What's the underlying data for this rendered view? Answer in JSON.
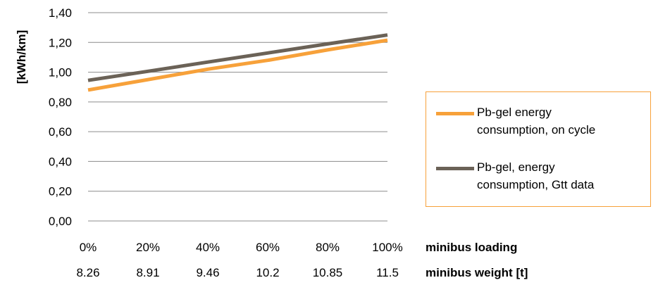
{
  "chart_data": {
    "type": "line",
    "x": [
      0,
      20,
      40,
      60,
      80,
      100
    ],
    "x_tick_labels": [
      "0%",
      "20%",
      "40%",
      "60%",
      "80%",
      "100%"
    ],
    "xlabel": "minibus loading",
    "secondary_x_tick_labels": [
      "8.26",
      "8.91",
      "9.46",
      "10.2",
      "10.85",
      "11.5"
    ],
    "secondary_xlabel": "minibus weight [t]",
    "ylabel": "[kWh/km]",
    "ylim": [
      0,
      1.4
    ],
    "y_tick_labels": [
      "0,00",
      "0,20",
      "0,40",
      "0,60",
      "0,80",
      "1,00",
      "1,20",
      "1,40"
    ],
    "grid": true,
    "legend_position": "right",
    "series": [
      {
        "name": "Pb-gel energy consumption, on cycle",
        "name_lines": [
          "Pb-gel energy",
          "consumption, on cycle"
        ],
        "color": "#f7a13a",
        "values": [
          0.88,
          0.95,
          1.02,
          1.08,
          1.15,
          1.215
        ]
      },
      {
        "name": "Pb-gel, energy consumption, Gtt data",
        "name_lines": [
          "Pb-gel, energy",
          "consumption, Gtt data"
        ],
        "color": "#6b6257",
        "values": [
          0.945,
          1.006,
          1.068,
          1.129,
          1.19,
          1.25
        ]
      }
    ]
  }
}
